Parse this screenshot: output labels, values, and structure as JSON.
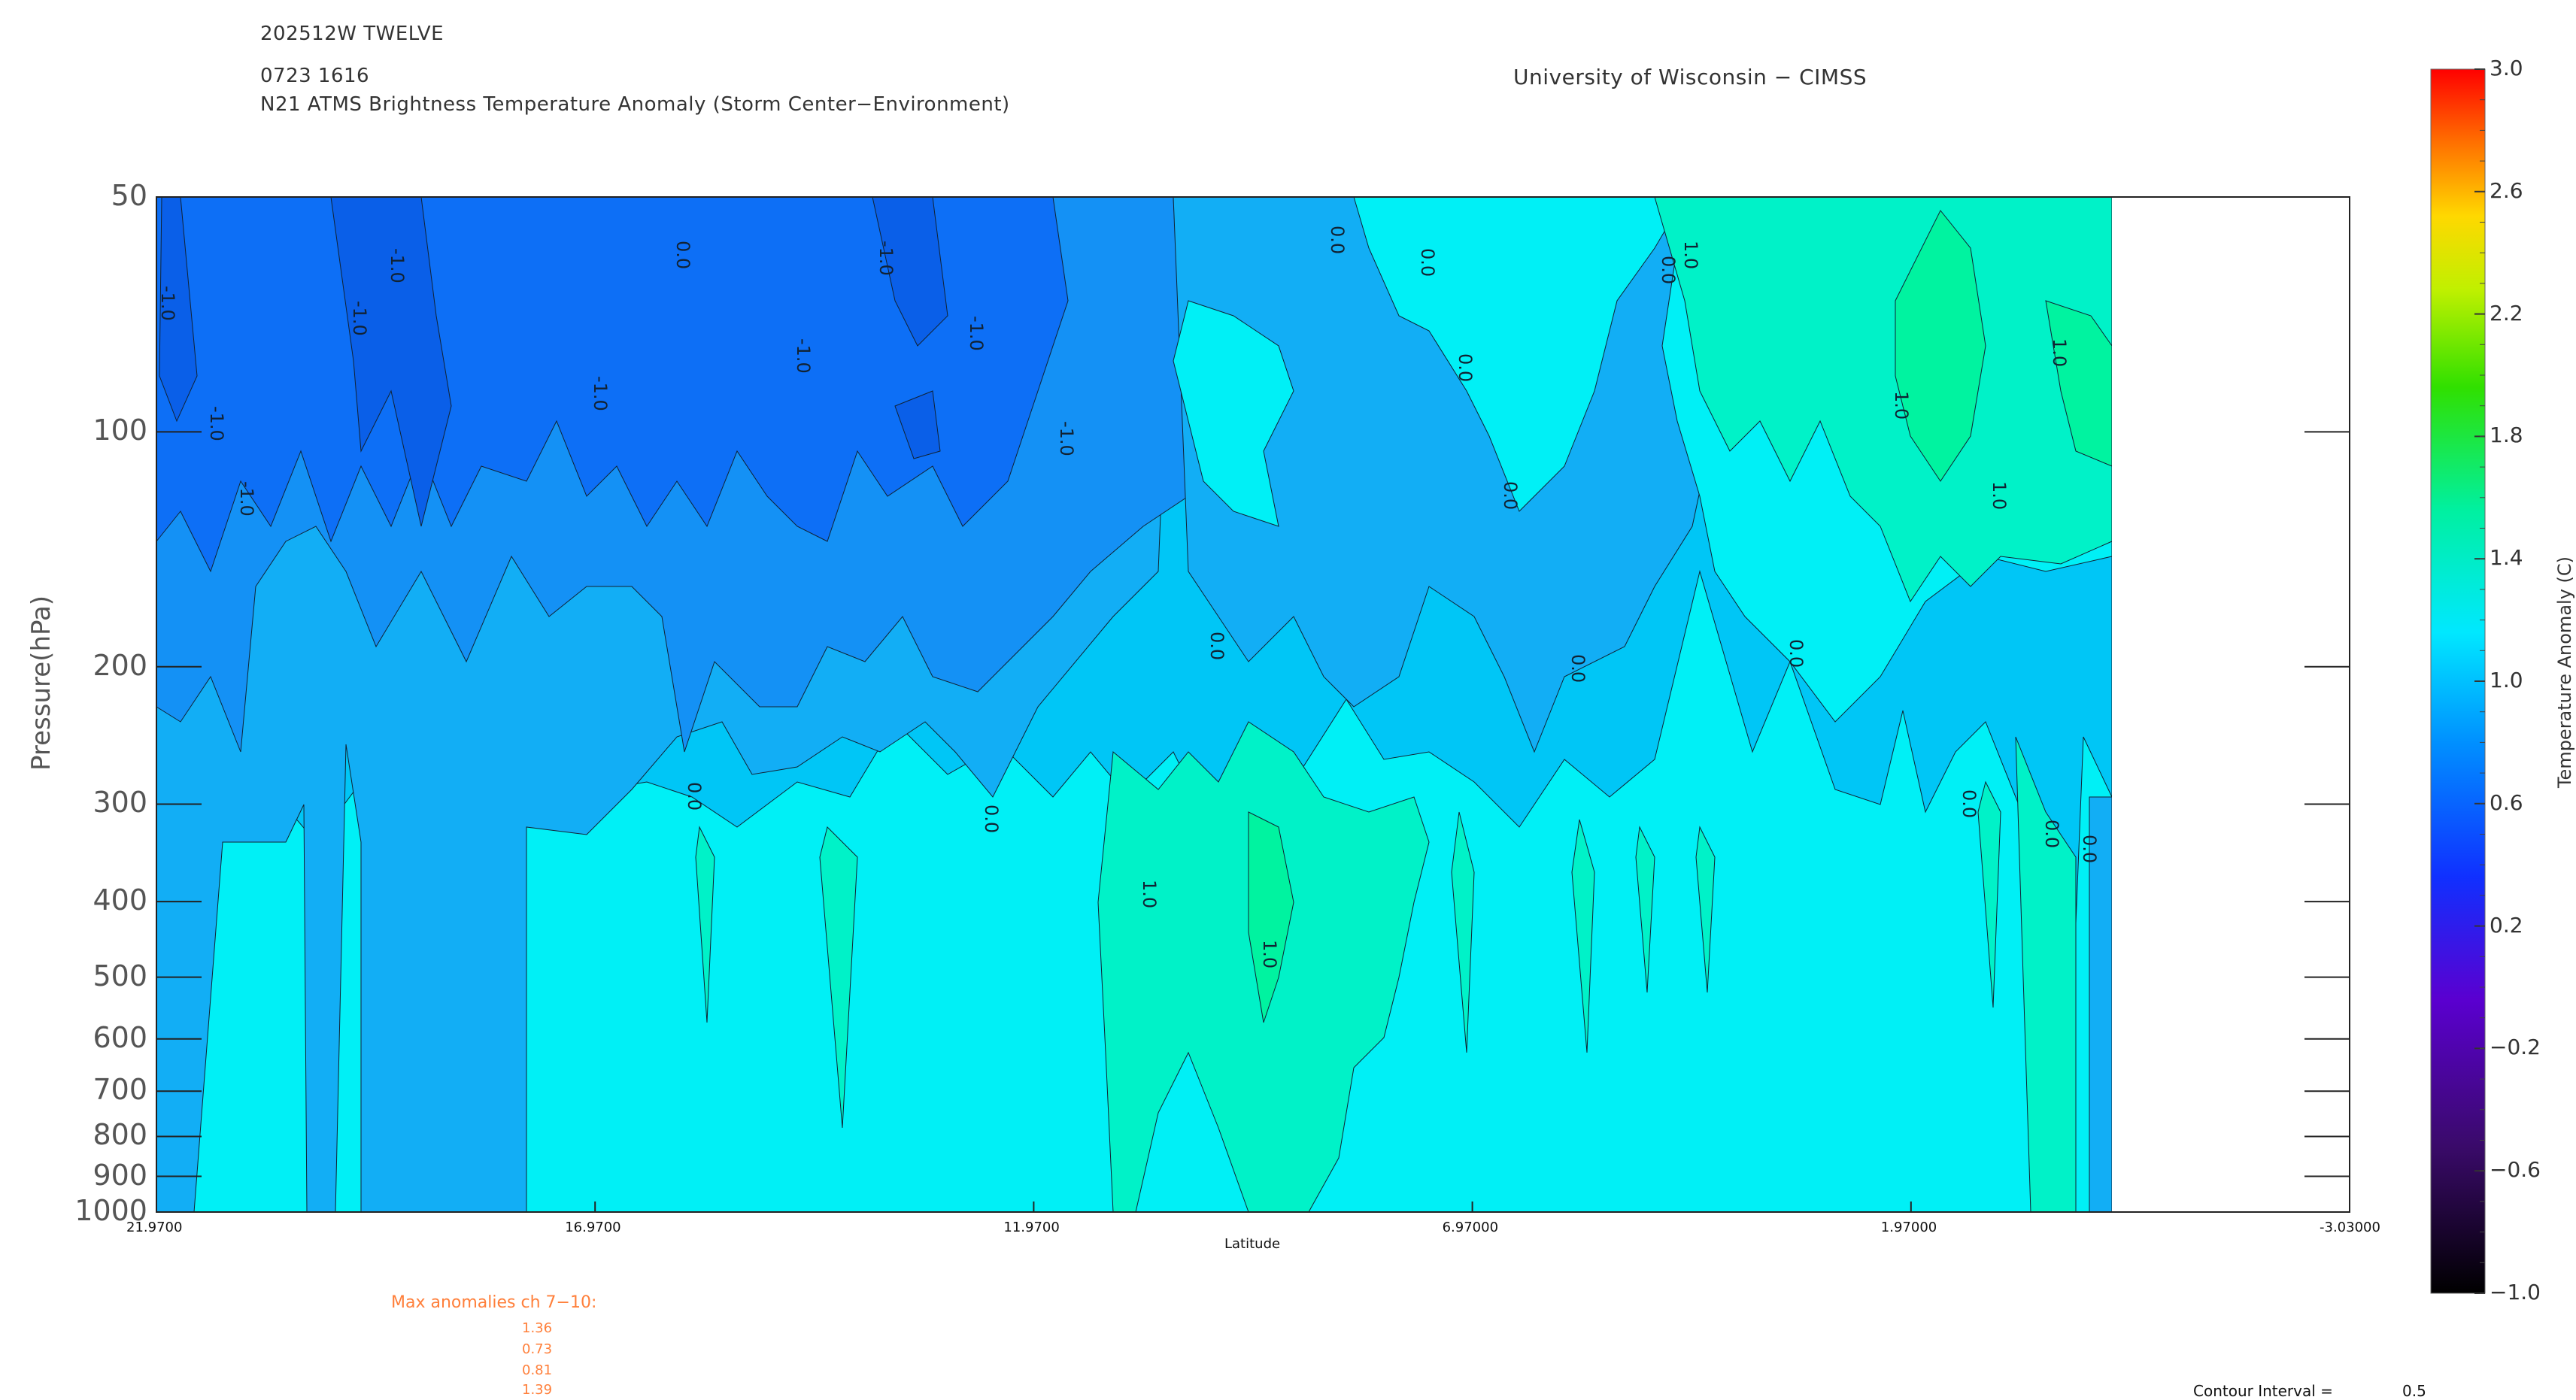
{
  "header": {
    "storm": "202512W TWELVE",
    "time": "0723 1616",
    "product": "N21 ATMS Brightness Temperature Anomaly (Storm Center−Environment)",
    "institution": "University of Wisconsin − CIMSS"
  },
  "chart_data": {
    "type": "heatmap",
    "ylabel": "Pressure(hPa)",
    "xlabel": "Latitude",
    "yscale": "log",
    "ylim": [
      1000,
      50
    ],
    "xlim": [
      21.97,
      -3.03
    ],
    "y_ticks": [
      "50",
      "100",
      "200",
      "300",
      "400",
      "500",
      "600",
      "700",
      "800",
      "900",
      "1000"
    ],
    "x_ticks": [
      "21.9700",
      "16.9700",
      "11.9700",
      "6.97000",
      "1.97000",
      "-3.03000"
    ],
    "contour_labels": [
      "-1.0",
      "0.0",
      "1.0"
    ],
    "colorbar": {
      "label": "Temperature Anomaly (C)",
      "ticks": [
        "3.0",
        "2.6",
        "2.2",
        "1.8",
        "1.4",
        "1.0",
        "0.6",
        "0.2",
        "−0.2",
        "−0.6",
        "−1.0"
      ],
      "range": [
        -1.0,
        3.0
      ]
    },
    "data_extent_lat": [
      21.97,
      -0.3
    ]
  },
  "max_anomalies": {
    "title": "Max anomalies ch 7−10:",
    "values": [
      "1.36",
      "0.73",
      "0.81",
      "1.39"
    ]
  },
  "contour_interval": {
    "label": "Contour Interval =",
    "value": "0.5"
  },
  "colors": {
    "lvl_m15": "#0d6ff6",
    "lvl_m10": "#1491f5",
    "lvl_m05": "#12aef5",
    "lvl_0": "#00c6f6",
    "lvl_05": "#00f0f6",
    "lvl_10": "#00f2c8",
    "lvl_15": "#00f3a0",
    "text_orange": "#ff7f3a"
  }
}
